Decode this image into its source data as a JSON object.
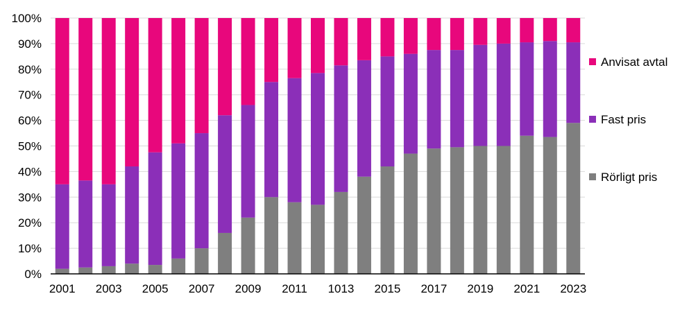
{
  "chart_data": {
    "type": "bar",
    "stacked": true,
    "categories": [
      "2001",
      "2002",
      "2003",
      "2004",
      "2005",
      "2006",
      "2007",
      "2008",
      "2009",
      "2010",
      "2011",
      "2012",
      "1013",
      "2014",
      "2015",
      "2016",
      "2017",
      "2018",
      "2019",
      "2020",
      "2021",
      "2022",
      "2023"
    ],
    "x_tick_labels": [
      "2001",
      "2003",
      "2005",
      "2007",
      "2009",
      "2011",
      "1013",
      "2015",
      "2017",
      "2019",
      "2021",
      "2023"
    ],
    "y_tick_labels": [
      "0%",
      "10%",
      "20%",
      "30%",
      "40%",
      "50%",
      "60%",
      "70%",
      "80%",
      "90%",
      "100%"
    ],
    "ylim": [
      0,
      100
    ],
    "grid": true,
    "legend_position": "right",
    "series": [
      {
        "name": "Rörligt pris",
        "color": "#7f7f7f",
        "values": [
          2,
          2.5,
          3,
          4,
          3.5,
          6,
          10,
          16,
          22,
          30,
          28,
          27,
          32,
          38,
          42,
          47,
          49,
          49.5,
          50,
          50,
          54,
          53.5,
          59
        ]
      },
      {
        "name": "Fast pris",
        "color": "#8b2fb8",
        "values": [
          33,
          34,
          32,
          38,
          44,
          45,
          45,
          46,
          44,
          45,
          48.5,
          51.5,
          49.5,
          45.5,
          43,
          39,
          38.5,
          38,
          39.5,
          40,
          36.5,
          37.5,
          31.5
        ]
      },
      {
        "name": "Anvisat avtal",
        "color": "#e8077c",
        "values": [
          65,
          63.5,
          65,
          58,
          52.5,
          49,
          45,
          38,
          34,
          25,
          23.5,
          21.5,
          18.5,
          16.5,
          15,
          14,
          12.5,
          12.5,
          10.5,
          10,
          9.5,
          9,
          9.5
        ]
      }
    ],
    "legend_order": [
      "Anvisat avtal",
      "Fast pris",
      "Rörligt pris"
    ]
  }
}
